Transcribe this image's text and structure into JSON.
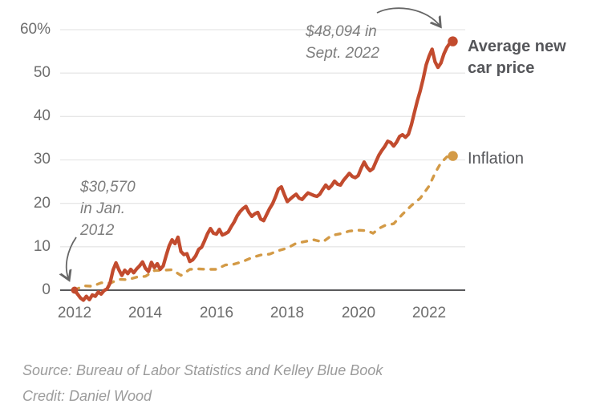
{
  "colors": {
    "car_price": "#c24b2e",
    "inflation": "#d39a46",
    "grid": "#e7e7e7",
    "axis": "#59595b",
    "tick_text": "#6d6d6d",
    "annotation_text": "#7d7d7d",
    "label_text": "#55565a",
    "footer_text": "#9b9b9b",
    "arrow": "#666666"
  },
  "axes": {
    "y_ticks": [
      {
        "label": "60%",
        "value": 60
      },
      {
        "label": "50",
        "value": 50
      },
      {
        "label": "40",
        "value": 40
      },
      {
        "label": "30",
        "value": 30
      },
      {
        "label": "20",
        "value": 20
      },
      {
        "label": "10",
        "value": 10
      },
      {
        "label": "0",
        "value": 0
      }
    ],
    "x_ticks": [
      {
        "label": "2012",
        "value": 2012
      },
      {
        "label": "2014",
        "value": 2014
      },
      {
        "label": "2016",
        "value": 2016
      },
      {
        "label": "2018",
        "value": 2018
      },
      {
        "label": "2020",
        "value": 2020
      },
      {
        "label": "2022",
        "value": 2022
      }
    ]
  },
  "footer": {
    "source": "Source: Bureau of Labor Statistics and Kelley Blue Book",
    "credit": "Credit: Daniel Wood"
  },
  "chart_data": {
    "type": "line",
    "title": "",
    "xlabel": "",
    "ylabel": "",
    "unit": "percent change since Jan. 2012",
    "xlim": [
      2011.55,
      2023.05
    ],
    "ylim": [
      -4,
      62
    ],
    "grid": "horizontal",
    "legend_position": "right-of-line-ends",
    "series": [
      {
        "name": "Average new car price",
        "color": "#c24b2e",
        "line_style": "solid",
        "start_dot": true,
        "end_dot": true,
        "x_start": 2012,
        "x_step": 0.0833333,
        "values": [
          0,
          -0.9,
          -1.8,
          -2.3,
          -1.4,
          -2.2,
          -1.1,
          -1.4,
          -0.4,
          -0.9,
          -0.1,
          0.3,
          1.6,
          4.6,
          6.3,
          4.7,
          3.4,
          4.6,
          3.8,
          4.8,
          4.0,
          4.9,
          5.6,
          6.5,
          5.0,
          4.3,
          6.4,
          5.2,
          6.1,
          4.8,
          5.6,
          8.0,
          10.2,
          11.6,
          10.7,
          12.2,
          8.9,
          8.2,
          8.4,
          6.6,
          7.0,
          7.9,
          9.4,
          9.9,
          11.4,
          13.0,
          14.2,
          13.1,
          12.9,
          14.0,
          12.7,
          13.0,
          13.4,
          14.6,
          15.7,
          17.1,
          18.1,
          18.8,
          19.3,
          17.9,
          17.0,
          17.6,
          17.9,
          16.4,
          16.0,
          17.4,
          18.8,
          19.9,
          21.5,
          23.3,
          23.8,
          22.0,
          20.4,
          21.0,
          21.6,
          22.1,
          21.2,
          20.9,
          21.7,
          22.4,
          22.1,
          21.8,
          21.6,
          22.1,
          23.2,
          24.2,
          23.4,
          24.1,
          25.1,
          24.4,
          24.2,
          25.3,
          26.1,
          26.9,
          26.2,
          25.9,
          26.4,
          28.1,
          29.5,
          28.3,
          27.5,
          28.0,
          29.6,
          31.1,
          32.2,
          33.1,
          34.3,
          34.0,
          33.2,
          34.1,
          35.4,
          35.8,
          35.2,
          35.9,
          38.1,
          40.9,
          43.6,
          45.9,
          48.7,
          51.9,
          53.9,
          55.5,
          52.6,
          51.3,
          52.3,
          54.4,
          55.9,
          56.9,
          57.3
        ]
      },
      {
        "name": "Inflation",
        "color": "#d39a46",
        "line_style": "dashed",
        "end_dot": true,
        "points": [
          [
            2012.0,
            0
          ],
          [
            2012.25,
            1.0
          ],
          [
            2012.5,
            0.9
          ],
          [
            2012.75,
            1.7
          ],
          [
            2013.0,
            1.6
          ],
          [
            2013.25,
            2.5
          ],
          [
            2013.5,
            2.4
          ],
          [
            2013.75,
            3.0
          ],
          [
            2014.0,
            3.2
          ],
          [
            2014.25,
            4.5
          ],
          [
            2014.5,
            4.6
          ],
          [
            2014.75,
            4.7
          ],
          [
            2015.0,
            3.4
          ],
          [
            2015.25,
            4.8
          ],
          [
            2015.5,
            4.9
          ],
          [
            2015.75,
            4.8
          ],
          [
            2016.0,
            4.8
          ],
          [
            2016.25,
            5.8
          ],
          [
            2016.5,
            6.0
          ],
          [
            2016.75,
            6.6
          ],
          [
            2017.0,
            7.5
          ],
          [
            2017.25,
            8.1
          ],
          [
            2017.5,
            8.3
          ],
          [
            2017.75,
            9.1
          ],
          [
            2018.0,
            9.7
          ],
          [
            2018.25,
            10.8
          ],
          [
            2018.5,
            11.2
          ],
          [
            2018.75,
            11.6
          ],
          [
            2019.0,
            11.1
          ],
          [
            2019.25,
            12.6
          ],
          [
            2019.5,
            13.0
          ],
          [
            2019.75,
            13.6
          ],
          [
            2020.0,
            13.8
          ],
          [
            2020.25,
            13.7
          ],
          [
            2020.42,
            13.1
          ],
          [
            2020.58,
            14.2
          ],
          [
            2020.75,
            14.9
          ],
          [
            2021.0,
            15.3
          ],
          [
            2021.25,
            17.5
          ],
          [
            2021.5,
            19.5
          ],
          [
            2021.75,
            21.2
          ],
          [
            2022.0,
            24.0
          ],
          [
            2022.17,
            27.0
          ],
          [
            2022.33,
            29.3
          ],
          [
            2022.5,
            30.7
          ],
          [
            2022.67,
            30.9
          ]
        ]
      }
    ],
    "annotations": [
      {
        "id": "end",
        "lines": [
          "$48,094 in",
          "Sept. 2022"
        ],
        "points_to": "last value of car price line"
      },
      {
        "id": "start",
        "lines": [
          "$30,570",
          "in Jan.",
          "2012"
        ],
        "points_to": "first value of car price line"
      }
    ]
  }
}
